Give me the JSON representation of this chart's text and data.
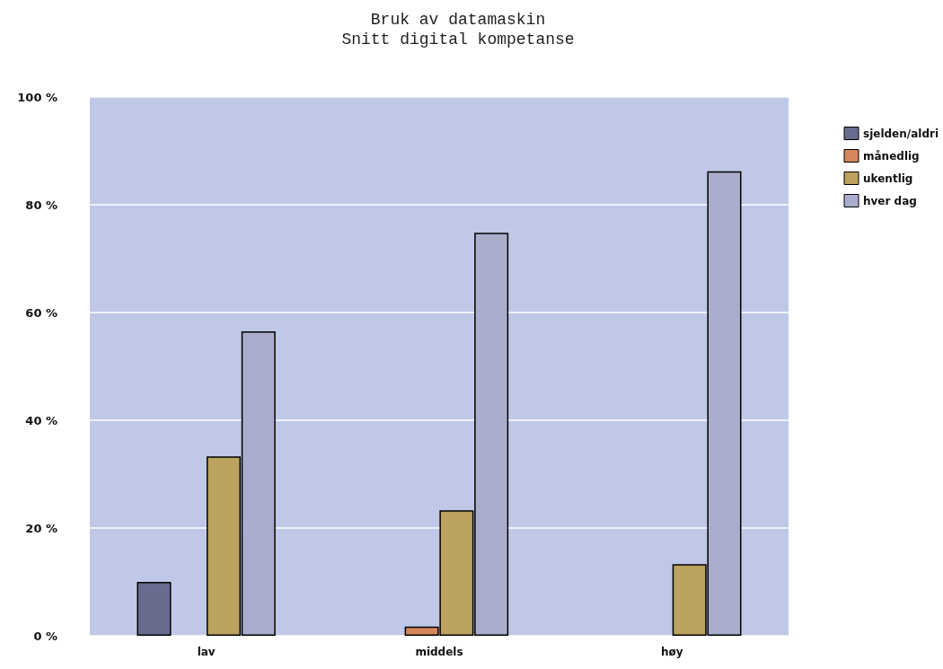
{
  "chart_data": {
    "type": "bar",
    "title": "Bruk av datamaskin",
    "subtitle": "Snitt digital kompetanse",
    "categories": [
      "lav",
      "middels",
      "høy"
    ],
    "series": [
      {
        "name": "sjelden/aldri",
        "color": "#6a6c8f",
        "values": [
          10,
          null,
          null
        ]
      },
      {
        "name": "månedlig",
        "color": "#d4875a",
        "values": [
          null,
          1.7,
          null
        ]
      },
      {
        "name": "ukentlig",
        "color": "#bba25f",
        "values": [
          33.3,
          23.3,
          13.3
        ]
      },
      {
        "name": "hver dag",
        "color": "#abadcd",
        "values": [
          56.5,
          74.8,
          86.2
        ]
      }
    ],
    "ylim": [
      0,
      100
    ],
    "yticks": [
      {
        "value": 0,
        "label": "0 %"
      },
      {
        "value": 20,
        "label": "20 %"
      },
      {
        "value": 40,
        "label": "40 %"
      },
      {
        "value": 60,
        "label": "60 %"
      },
      {
        "value": 80,
        "label": "80 %"
      },
      {
        "value": 100,
        "label": "100 %"
      }
    ],
    "grid": "y",
    "legend": "top right"
  }
}
